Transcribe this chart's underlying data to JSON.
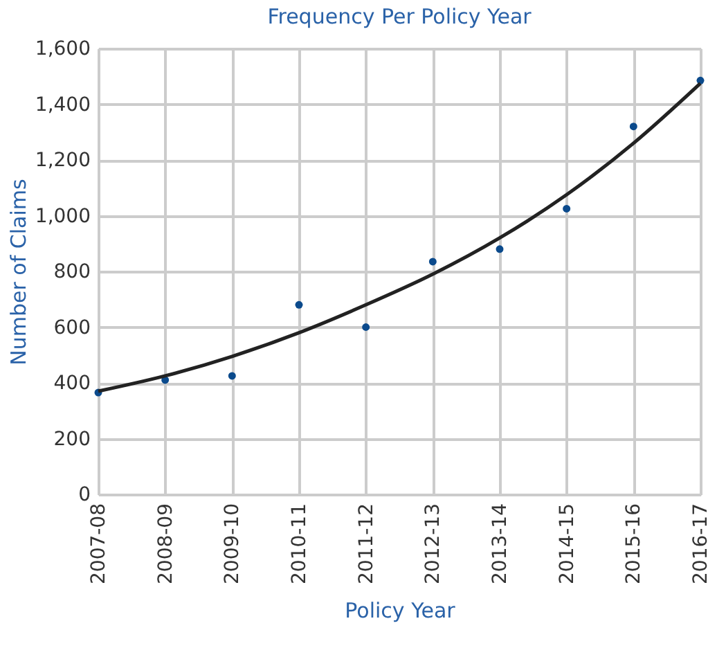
{
  "chart_data": {
    "type": "scatter",
    "title": "Frequency Per Policy Year",
    "xlabel": "Policy Year",
    "ylabel": "Number of Claims",
    "categories": [
      "2007-08",
      "2008-09",
      "2009-10",
      "2010-11",
      "2011-12",
      "2012-13",
      "2013-14",
      "2014-15",
      "2015-16",
      "2016-17"
    ],
    "series": [
      {
        "color": "#0b4a8c",
        "marker": "circle",
        "values": [
          365,
          410,
          425,
          680,
          600,
          835,
          880,
          1025,
          1320,
          1485
        ]
      },
      {
        "type": "line",
        "marker": "none",
        "color": "#222222",
        "values": [
          370,
          425,
          495,
          580,
          680,
          790,
          920,
          1075,
          1260,
          1475
        ]
      }
    ],
    "ylim": [
      0,
      1600
    ],
    "yticks": [
      0,
      {
        "value": 200,
        "label": "200"
      },
      {
        "value": 400,
        "label": "400"
      },
      {
        "value": 600,
        "label": "600"
      },
      {
        "value": 800,
        "label": "800"
      },
      {
        "value": 1000,
        "label": "1,000"
      },
      {
        "value": 1200,
        "label": "1,200"
      },
      {
        "value": 1400,
        "label": "1,400"
      },
      {
        "value": 1600,
        "label": "1,600"
      }
    ],
    "grid": true,
    "line_style": "solid"
  }
}
